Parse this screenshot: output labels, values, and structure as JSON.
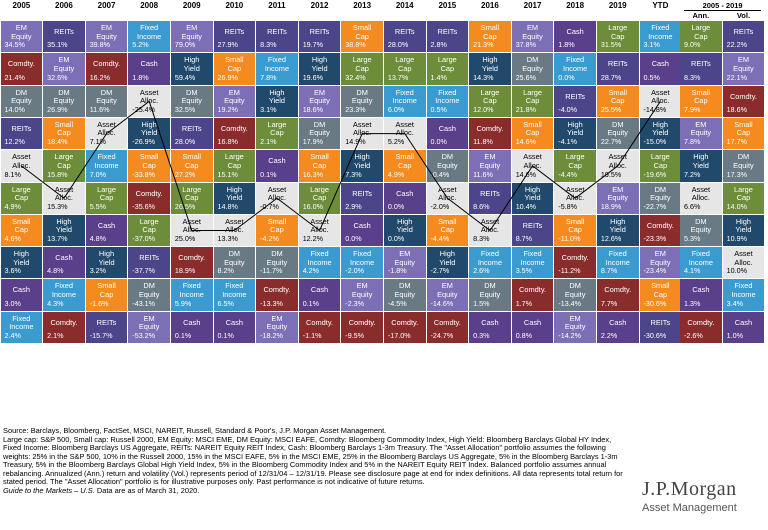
{
  "chart_data": {
    "type": "table",
    "years": [
      "2005",
      "2006",
      "2007",
      "2008",
      "2009",
      "2010",
      "2011",
      "2012",
      "2013",
      "2014",
      "2015",
      "2016",
      "2017",
      "2018",
      "2019",
      "YTD"
    ],
    "summary_header": "2005 - 2019",
    "summary_columns": [
      "Ann.",
      "Vol."
    ],
    "asset_colors": {
      "EM Equity": "#7c6fb6",
      "REITs": "#4d4589",
      "Comdty.": "#8b2c2c",
      "DM Equity": "#6a7a84",
      "Small Cap": "#f58b1f",
      "Asset Alloc.": "#e6e6e6",
      "Large Cap": "#6e8d3a",
      "High Yield": "#20496b",
      "Fixed Income": "#3a9bd1",
      "Cash": "#5a3f8a"
    },
    "columns": [
      [
        [
          "EM Equity",
          "34.5%"
        ],
        [
          "Comdty.",
          "21.4%"
        ],
        [
          "DM Equity",
          "14.0%"
        ],
        [
          "REITs",
          "12.2%"
        ],
        [
          "Asset Alloc.",
          "8.1%"
        ],
        [
          "Large Cap",
          "4.9%"
        ],
        [
          "Small Cap",
          "4.6%"
        ],
        [
          "High Yield",
          "3.6%"
        ],
        [
          "Cash",
          "3.0%"
        ],
        [
          "Fixed Income",
          "2.4%"
        ]
      ],
      [
        [
          "REITs",
          "35.1%"
        ],
        [
          "EM Equity",
          "32.6%"
        ],
        [
          "DM Equity",
          "26.9%"
        ],
        [
          "Small Cap",
          "18.4%"
        ],
        [
          "Large Cap",
          "15.8%"
        ],
        [
          "Asset Alloc.",
          "15.3%"
        ],
        [
          "High Yield",
          "13.7%"
        ],
        [
          "Cash",
          "4.8%"
        ],
        [
          "Fixed Income",
          "4.3%"
        ],
        [
          "Comdty.",
          "2.1%"
        ]
      ],
      [
        [
          "EM Equity",
          "39.8%"
        ],
        [
          "Comdty.",
          "16.2%"
        ],
        [
          "DM Equity",
          "11.6%"
        ],
        [
          "Asset Alloc.",
          "7.1%"
        ],
        [
          "Fixed Income",
          "7.0%"
        ],
        [
          "Large Cap",
          "5.5%"
        ],
        [
          "Cash",
          "4.8%"
        ],
        [
          "High Yield",
          "3.2%"
        ],
        [
          "Small Cap",
          "-1.6%"
        ],
        [
          "REITs",
          "-15.7%"
        ]
      ],
      [
        [
          "Fixed Income",
          "5.2%"
        ],
        [
          "Cash",
          "1.8%"
        ],
        [
          "Asset Alloc.",
          "-25.4%"
        ],
        [
          "High Yield",
          "-26.9%"
        ],
        [
          "Small Cap",
          "-33.8%"
        ],
        [
          "Comdty.",
          "-35.6%"
        ],
        [
          "Large Cap",
          "-37.0%"
        ],
        [
          "REITs",
          "-37.7%"
        ],
        [
          "DM Equity",
          "-43.1%"
        ],
        [
          "EM Equity",
          "-53.2%"
        ]
      ],
      [
        [
          "EM Equity",
          "79.0%"
        ],
        [
          "High Yield",
          "59.4%"
        ],
        [
          "DM Equity",
          "32.5%"
        ],
        [
          "REITs",
          "28.0%"
        ],
        [
          "Small Cap",
          "27.2%"
        ],
        [
          "Large Cap",
          "26.5%"
        ],
        [
          "Asset Alloc.",
          "25.0%"
        ],
        [
          "Comdty.",
          "18.9%"
        ],
        [
          "Fixed Income",
          "5.9%"
        ],
        [
          "Cash",
          "0.1%"
        ]
      ],
      [
        [
          "REITs",
          "27.9%"
        ],
        [
          "Small Cap",
          "26.9%"
        ],
        [
          "EM Equity",
          "19.2%"
        ],
        [
          "Comdty.",
          "16.8%"
        ],
        [
          "Large Cap",
          "15.1%"
        ],
        [
          "High Yield",
          "14.8%"
        ],
        [
          "Asset Alloc.",
          "13.3%"
        ],
        [
          "DM Equity",
          "8.2%"
        ],
        [
          "Fixed Income",
          "6.5%"
        ],
        [
          "Cash",
          "0.1%"
        ]
      ],
      [
        [
          "REITs",
          "8.3%"
        ],
        [
          "Fixed Income",
          "7.8%"
        ],
        [
          "High Yield",
          "3.1%"
        ],
        [
          "Large Cap",
          "2.1%"
        ],
        [
          "Cash",
          "0.1%"
        ],
        [
          "Asset Alloc.",
          "-0.7%"
        ],
        [
          "Small Cap",
          "-4.2%"
        ],
        [
          "DM Equity",
          "-11.7%"
        ],
        [
          "Comdty.",
          "-13.3%"
        ],
        [
          "EM Equity",
          "-18.2%"
        ]
      ],
      [
        [
          "REITs",
          "19.7%"
        ],
        [
          "High Yield",
          "19.6%"
        ],
        [
          "EM Equity",
          "18.6%"
        ],
        [
          "DM Equity",
          "17.9%"
        ],
        [
          "Small Cap",
          "16.3%"
        ],
        [
          "Large Cap",
          "16.0%"
        ],
        [
          "Asset Alloc.",
          "12.2%"
        ],
        [
          "Fixed Income",
          "4.2%"
        ],
        [
          "Cash",
          "0.1%"
        ],
        [
          "Comdty.",
          "-1.1%"
        ]
      ],
      [
        [
          "Small Cap",
          "38.8%"
        ],
        [
          "Large Cap",
          "32.4%"
        ],
        [
          "DM Equity",
          "23.3%"
        ],
        [
          "Asset Alloc.",
          "14.9%"
        ],
        [
          "High Yield",
          "7.3%"
        ],
        [
          "REITs",
          "2.9%"
        ],
        [
          "Cash",
          "0.0%"
        ],
        [
          "Fixed Income",
          "-2.0%"
        ],
        [
          "EM Equity",
          "-2.3%"
        ],
        [
          "Comdty.",
          "-9.5%"
        ]
      ],
      [
        [
          "REITs",
          "28.0%"
        ],
        [
          "Large Cap",
          "13.7%"
        ],
        [
          "Fixed Income",
          "6.0%"
        ],
        [
          "Asset Alloc.",
          "5.2%"
        ],
        [
          "Small Cap",
          "4.9%"
        ],
        [
          "Cash",
          "0.0%"
        ],
        [
          "High Yield",
          "0.0%"
        ],
        [
          "EM Equity",
          "-1.8%"
        ],
        [
          "DM Equity",
          "-4.5%"
        ],
        [
          "Comdty.",
          "-17.0%"
        ]
      ],
      [
        [
          "REITs",
          "2.8%"
        ],
        [
          "Large Cap",
          "1.4%"
        ],
        [
          "Fixed Income",
          "0.5%"
        ],
        [
          "Cash",
          "0.0%"
        ],
        [
          "DM Equity",
          "-0.4%"
        ],
        [
          "Asset Alloc.",
          "-2.0%"
        ],
        [
          "Small Cap",
          "-4.4%"
        ],
        [
          "High Yield",
          "-2.7%"
        ],
        [
          "EM Equity",
          "-14.6%"
        ],
        [
          "Comdty.",
          "-24.7%"
        ]
      ],
      [
        [
          "Small Cap",
          "21.3%"
        ],
        [
          "High Yield",
          "14.3%"
        ],
        [
          "Large Cap",
          "12.0%"
        ],
        [
          "Comdty.",
          "11.8%"
        ],
        [
          "EM Equity",
          "11.6%"
        ],
        [
          "REITs",
          "8.6%"
        ],
        [
          "Asset Alloc.",
          "8.3%"
        ],
        [
          "Fixed Income",
          "2.6%"
        ],
        [
          "DM Equity",
          "1.5%"
        ],
        [
          "Cash",
          "0.3%"
        ]
      ],
      [
        [
          "EM Equity",
          "37.8%"
        ],
        [
          "DM Equity",
          "25.6%"
        ],
        [
          "Large Cap",
          "21.8%"
        ],
        [
          "Small Cap",
          "14.6%"
        ],
        [
          "Asset Alloc.",
          "14.6%"
        ],
        [
          "High Yield",
          "10.4%"
        ],
        [
          "REITs",
          "8.7%"
        ],
        [
          "Fixed Income",
          "3.5%"
        ],
        [
          "Comdty.",
          "1.7%"
        ],
        [
          "Cash",
          "0.8%"
        ]
      ],
      [
        [
          "Cash",
          "1.8%"
        ],
        [
          "Fixed Income",
          "0.0%"
        ],
        [
          "REITs",
          "-4.0%"
        ],
        [
          "High Yield",
          "-4.1%"
        ],
        [
          "Large Cap",
          "-4.4%"
        ],
        [
          "Asset Alloc.",
          "-5.8%"
        ],
        [
          "Small Cap",
          "-11.0%"
        ],
        [
          "Comdty.",
          "-11.2%"
        ],
        [
          "DM Equity",
          "-13.4%"
        ],
        [
          "EM Equity",
          "-14.2%"
        ]
      ],
      [
        [
          "Large Cap",
          "31.5%"
        ],
        [
          "REITs",
          "28.7%"
        ],
        [
          "Small Cap",
          "25.5%"
        ],
        [
          "DM Equity",
          "22.7%"
        ],
        [
          "Asset Alloc.",
          "19.5%"
        ],
        [
          "EM Equity",
          "18.9%"
        ],
        [
          "High Yield",
          "12.6%"
        ],
        [
          "Fixed Income",
          "8.7%"
        ],
        [
          "Comdty.",
          "7.7%"
        ],
        [
          "Cash",
          "2.2%"
        ]
      ],
      [
        [
          "Fixed Income",
          "3.1%"
        ],
        [
          "Cash",
          "0.5%"
        ],
        [
          "Asset Alloc.",
          "-14.8%"
        ],
        [
          "High Yield",
          "-15.0%"
        ],
        [
          "Large Cap",
          "-19.6%"
        ],
        [
          "DM Equity",
          "-22.7%"
        ],
        [
          "Comdty.",
          "-23.3%"
        ],
        [
          "EM Equity",
          "-23.4%"
        ],
        [
          "Small Cap",
          "-30.6%"
        ],
        [
          "REITs",
          "-30.6%"
        ]
      ]
    ],
    "annualized": [
      [
        "Large Cap",
        "9.0%"
      ],
      [
        "REITs",
        "8.3%"
      ],
      [
        "Small Cap",
        "7.9%"
      ],
      [
        "EM Equity",
        "7.8%"
      ],
      [
        "High Yield",
        "7.2%"
      ],
      [
        "Asset Alloc.",
        "6.6%"
      ],
      [
        "DM Equity",
        "5.3%"
      ],
      [
        "Fixed Income",
        "4.1%"
      ],
      [
        "Cash",
        "1.3%"
      ],
      [
        "Comdty.",
        "-2.6%"
      ]
    ],
    "volatility": [
      [
        "REITs",
        "22.2%"
      ],
      [
        "EM Equity",
        "22.1%"
      ],
      [
        "Comdty.",
        "18.6%"
      ],
      [
        "Small Cap",
        "17.7%"
      ],
      [
        "DM Equity",
        "17.3%"
      ],
      [
        "Large Cap",
        "14.0%"
      ],
      [
        "High Yield",
        "10.9%"
      ],
      [
        "Asset Alloc.",
        "10.0%"
      ],
      [
        "Fixed Income",
        "3.4%"
      ],
      [
        "Cash",
        "1.0%"
      ]
    ]
  },
  "footnote": {
    "line1": "Source: Barclays, Bloomberg, FactSet, MSCI, NAREIT, Russell, Standard & Poor's, J.P. Morgan Asset Management.",
    "body": "Large cap: S&P 500, Small cap: Russell 2000, EM Equity: MSCI EME, DM Equity: MSCI EAFE, Comdty: Bloomberg Commodity Index, High Yield: Bloomberg Barclays Global HY Index, Fixed Income: Bloomberg Barclays US Aggregate, REITs: NAREIT Equity REIT Index, Cash: Bloomberg Barclays 1-3m Treasury. The \"Asset Allocation\" portfolio assumes the following weights: 25% in the S&P 500, 10% in the Russell 2000, 15% in the MSCI EAFE, 5% in the MSCI EME, 25% in the Bloomberg Barclays US Aggregate, 5% in the Bloomberg Barclays 1-3m Treasury, 5% in the Bloomberg Barclays Global High Yield Index, 5% in the Bloomberg Commodity Index and 5% in the NAREIT Equity REIT Index. Balanced portfolio assumes annual rebalancing. Annualized (Ann.) return and volatility (Vol.) represents period of 12/31/04 – 12/31/19. Please see disclosure page at end for index definitions. All data represents total return for stated period. The \"Asset Allocation\" portfolio is for illustrative purposes only. Past performance is not indicative of future returns.",
    "guide": "Guide to the Markets – U.S.",
    "guide_suffix": " Data are as of March 31, 2020."
  },
  "logo": {
    "line1": "J.P.Morgan",
    "line2": "Asset Management"
  }
}
